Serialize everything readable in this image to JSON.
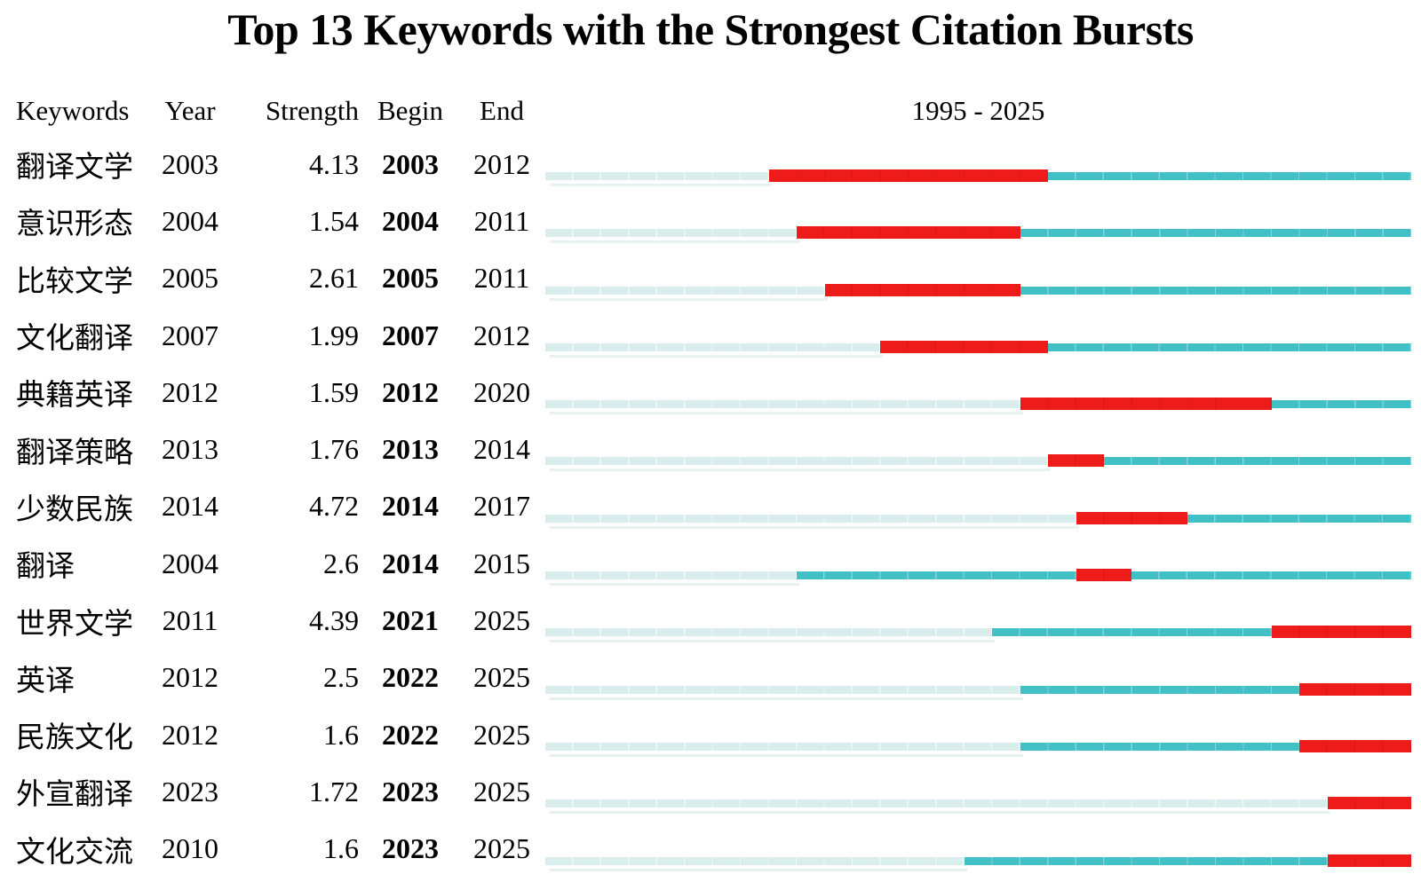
{
  "title": "Top 13 Keywords with the Strongest Citation Bursts",
  "header": {
    "keywords": "Keywords",
    "year": "Year",
    "strength": "Strength",
    "begin": "Begin",
    "end": "End",
    "timeline": "1995 - 2025"
  },
  "colors": {
    "pre_keyword_bar": "#d9eded",
    "active_keyword_bar": "#41c0c6",
    "burst_bar": "#ee1b1b"
  },
  "chart_data": {
    "type": "gantt",
    "title": "Top 13 Keywords with the Strongest Citation Bursts",
    "x_range": [
      1995,
      2025
    ],
    "columns": [
      "Keywords",
      "Year",
      "Strength",
      "Begin",
      "End"
    ],
    "legend": {
      "pale_segment": "years before keyword first appears",
      "teal_segment": "keyword active, no burst",
      "red_segment": "citation burst interval"
    },
    "rows": [
      {
        "keyword": "翻译文学",
        "year": 2003,
        "strength": "4.13",
        "begin": 2003,
        "end": 2012
      },
      {
        "keyword": "意识形态",
        "year": 2004,
        "strength": "1.54",
        "begin": 2004,
        "end": 2011
      },
      {
        "keyword": "比较文学",
        "year": 2005,
        "strength": "2.61",
        "begin": 2005,
        "end": 2011
      },
      {
        "keyword": "文化翻译",
        "year": 2007,
        "strength": "1.99",
        "begin": 2007,
        "end": 2012
      },
      {
        "keyword": "典籍英译",
        "year": 2012,
        "strength": "1.59",
        "begin": 2012,
        "end": 2020
      },
      {
        "keyword": "翻译策略",
        "year": 2013,
        "strength": "1.76",
        "begin": 2013,
        "end": 2014
      },
      {
        "keyword": "少数民族",
        "year": 2014,
        "strength": "4.72",
        "begin": 2014,
        "end": 2017
      },
      {
        "keyword": "翻译",
        "year": 2004,
        "strength": "2.6",
        "begin": 2014,
        "end": 2015
      },
      {
        "keyword": "世界文学",
        "year": 2011,
        "strength": "4.39",
        "begin": 2021,
        "end": 2025
      },
      {
        "keyword": "英译",
        "year": 2012,
        "strength": "2.5",
        "begin": 2022,
        "end": 2025
      },
      {
        "keyword": "民族文化",
        "year": 2012,
        "strength": "1.6",
        "begin": 2022,
        "end": 2025
      },
      {
        "keyword": "外宣翻译",
        "year": 2023,
        "strength": "1.72",
        "begin": 2023,
        "end": 2025
      },
      {
        "keyword": "文化交流",
        "year": 2010,
        "strength": "1.6",
        "begin": 2023,
        "end": 2025
      }
    ]
  }
}
